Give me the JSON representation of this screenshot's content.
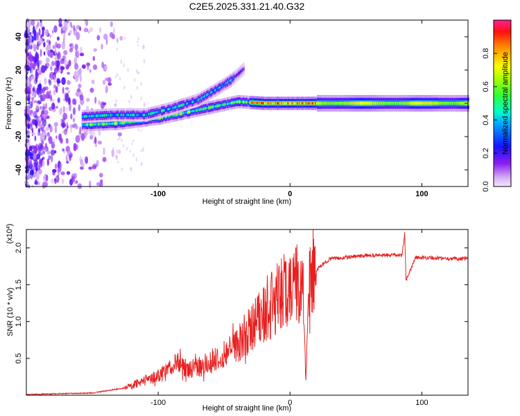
{
  "title": "C2E5.2025.331.21.40.G32",
  "chart_data": [
    {
      "type": "heatmap",
      "title": "C2E5.2025.331.21.40.G32",
      "xlabel": "Height of straight line (km)",
      "ylabel": "Frequency (Hz)",
      "xlim": [
        -200,
        135
      ],
      "ylim": [
        -50,
        50
      ],
      "x_ticks": [
        -100,
        0,
        100
      ],
      "x_tick_labels": [
        "-100",
        "0",
        "100"
      ],
      "y_ticks": [
        -40,
        -20,
        0,
        20,
        40
      ],
      "y_tick_labels": [
        "-40",
        "-20",
        "0",
        "20",
        "40"
      ],
      "colorbar": {
        "label": "Normalized spectral amplitude",
        "range": [
          0,
          1
        ],
        "ticks": [
          "0.0",
          "0.2",
          "0.4",
          "0.6",
          "0.8"
        ],
        "colors": [
          "#e8d8f8",
          "#7a00e6",
          "#0000ff",
          "#00c8ff",
          "#00ff80",
          "#60ff00",
          "#ffff00",
          "#ff8000",
          "#ff0000",
          "#ff0080"
        ]
      },
      "ridges": [
        {
          "name": "lower-branch",
          "points": [
            [
              -158,
              -13
            ],
            [
              -130,
              -12
            ],
            [
              -100,
              -9
            ],
            [
              -70,
              -4
            ],
            [
              -40,
              1
            ],
            [
              -20,
              0
            ],
            [
              0,
              0
            ],
            [
              40,
              0
            ],
            [
              135,
              0
            ]
          ]
        },
        {
          "name": "upper-branch",
          "points": [
            [
              -158,
              -8
            ],
            [
              -135,
              -7
            ],
            [
              -110,
              -7
            ],
            [
              -90,
              -3
            ],
            [
              -70,
              2
            ],
            [
              -55,
              9
            ],
            [
              -45,
              14
            ],
            [
              -35,
              21
            ]
          ]
        }
      ]
    },
    {
      "type": "line",
      "xlabel": "Height of straight line (km)",
      "ylabel": "SNR (10 * v/v)",
      "y_multiplier": "(x10",
      "y_multiplier_exp": "4",
      "y_multiplier_close": ")",
      "xlim": [
        -200,
        135
      ],
      "ylim": [
        0,
        2.25
      ],
      "x_ticks": [
        -100,
        0,
        100
      ],
      "x_tick_labels": [
        "-100",
        "0",
        "100"
      ],
      "y_ticks": [
        0.5,
        1.0,
        1.5,
        2.0
      ],
      "y_tick_labels": [
        "0.5",
        "1.0",
        "1.5",
        "2.0"
      ],
      "color": "#e82020",
      "envelope": [
        [
          -200,
          0.01
        ],
        [
          -150,
          0.03
        ],
        [
          -125,
          0.1
        ],
        [
          -110,
          0.2
        ],
        [
          -95,
          0.3
        ],
        [
          -85,
          0.45
        ],
        [
          -75,
          0.35
        ],
        [
          -60,
          0.45
        ],
        [
          -45,
          0.6
        ],
        [
          -35,
          0.8
        ],
        [
          -25,
          1.0
        ],
        [
          -15,
          1.2
        ],
        [
          -5,
          1.4
        ],
        [
          5,
          1.5
        ],
        [
          10,
          1.35
        ],
        [
          12,
          0.2
        ],
        [
          15,
          1.55
        ],
        [
          20,
          1.7
        ],
        [
          30,
          1.85
        ],
        [
          60,
          1.9
        ],
        [
          85,
          1.9
        ],
        [
          87,
          2.2
        ],
        [
          88,
          1.55
        ],
        [
          95,
          1.87
        ],
        [
          135,
          1.85
        ]
      ]
    }
  ]
}
